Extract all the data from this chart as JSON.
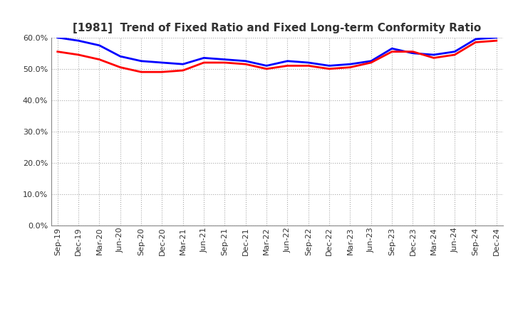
{
  "title": "[1981]  Trend of Fixed Ratio and Fixed Long-term Conformity Ratio",
  "x_labels": [
    "Sep-19",
    "Dec-19",
    "Mar-20",
    "Jun-20",
    "Sep-20",
    "Dec-20",
    "Mar-21",
    "Jun-21",
    "Sep-21",
    "Dec-21",
    "Mar-22",
    "Jun-22",
    "Sep-22",
    "Dec-22",
    "Mar-23",
    "Jun-23",
    "Sep-23",
    "Dec-23",
    "Mar-24",
    "Jun-24",
    "Sep-24",
    "Dec-24"
  ],
  "fixed_ratio": [
    60.0,
    59.0,
    57.5,
    54.0,
    52.5,
    52.0,
    51.5,
    53.5,
    53.0,
    52.5,
    51.0,
    52.5,
    52.0,
    51.0,
    51.5,
    52.5,
    56.5,
    55.0,
    54.5,
    55.5,
    59.5,
    60.0
  ],
  "fixed_longterm": [
    55.5,
    54.5,
    53.0,
    50.5,
    49.0,
    49.0,
    49.5,
    52.0,
    52.0,
    51.5,
    50.0,
    51.0,
    51.0,
    50.0,
    50.5,
    52.0,
    55.5,
    55.5,
    53.5,
    54.5,
    58.5,
    59.0
  ],
  "fixed_ratio_color": "#0000FF",
  "fixed_longterm_color": "#FF0000",
  "ylim": [
    0,
    60
  ],
  "yticks": [
    0,
    10,
    20,
    30,
    40,
    50,
    60
  ],
  "background_color": "#FFFFFF",
  "plot_bg_color": "#FFFFFF",
  "grid_color": "#AAAAAA",
  "title_color": "#333333",
  "tick_color": "#333333",
  "line_width": 2.0,
  "title_fontsize": 11,
  "tick_fontsize": 8
}
